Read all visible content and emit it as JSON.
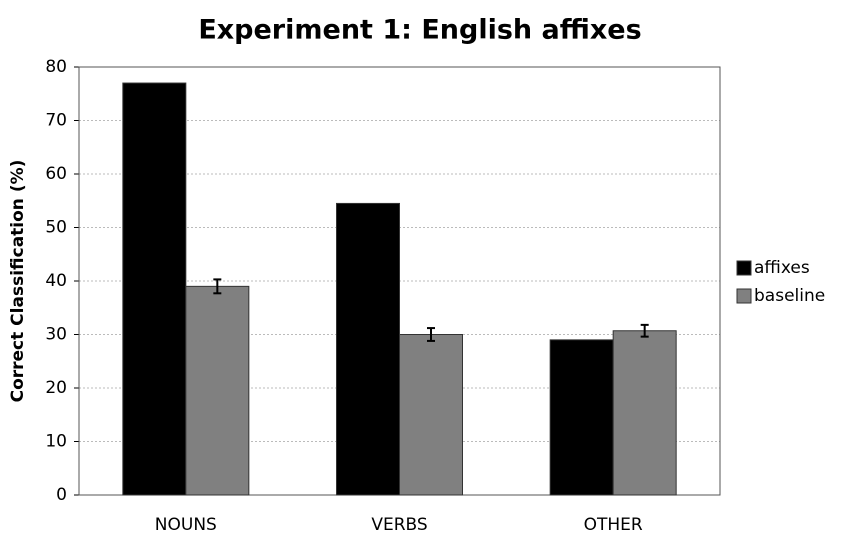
{
  "chart_data": {
    "type": "bar",
    "title": "Experiment 1: English affixes",
    "y_label": "Correct Classification (%)",
    "categories": [
      "NOUNS",
      "VERBS",
      "OTHER"
    ],
    "series": [
      {
        "name": "affixes",
        "color": "#000000",
        "values": [
          77,
          54.5,
          29
        ]
      },
      {
        "name": "baseline",
        "color": "#808080",
        "values": [
          39,
          30,
          30.7
        ],
        "errors": [
          1.3,
          1.2,
          1.1
        ]
      }
    ],
    "ylim": [
      0,
      80
    ],
    "yticks": [
      0,
      10,
      20,
      30,
      40,
      50,
      60,
      70,
      80
    ],
    "grid": true,
    "legend": "right"
  }
}
